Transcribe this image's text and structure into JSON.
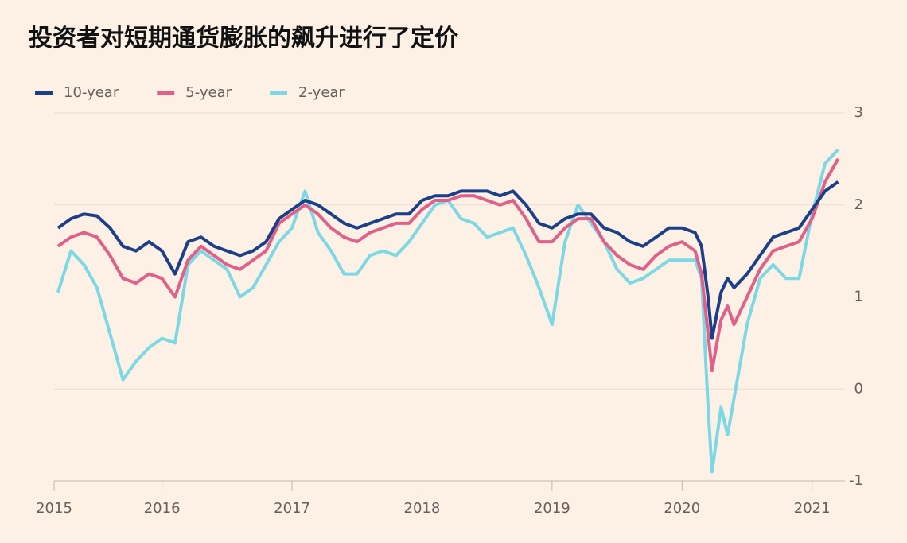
{
  "chart_data": {
    "type": "line",
    "title": "投资者对短期通货膨胀的飙升进行了定价",
    "x": [
      2015.2,
      2015.3,
      2015.4,
      2015.5,
      2015.6,
      2015.7,
      2015.8,
      2015.9,
      2016.0,
      2016.1,
      2016.2,
      2016.3,
      2016.4,
      2016.5,
      2016.6,
      2016.7,
      2016.8,
      2016.9,
      2017.0,
      2017.1,
      2017.2,
      2017.3,
      2017.4,
      2017.5,
      2017.6,
      2017.7,
      2017.8,
      2017.9,
      2018.0,
      2018.1,
      2018.2,
      2018.3,
      2018.4,
      2018.5,
      2018.6,
      2018.7,
      2018.8,
      2018.9,
      2019.0,
      2019.1,
      2019.2,
      2019.3,
      2019.4,
      2019.5,
      2019.6,
      2019.7,
      2019.8,
      2019.9,
      2020.0,
      2020.1,
      2020.15,
      2020.2,
      2020.23,
      2020.3,
      2020.35,
      2020.4,
      2020.5,
      2020.6,
      2020.7,
      2020.8,
      2020.9,
      2021.0,
      2021.1,
      2021.2
    ],
    "series": [
      {
        "name": "10-year",
        "color": "#1c3f8a",
        "values": [
          1.75,
          1.85,
          1.9,
          1.88,
          1.75,
          1.55,
          1.5,
          1.6,
          1.5,
          1.25,
          1.6,
          1.65,
          1.55,
          1.5,
          1.45,
          1.5,
          1.6,
          1.85,
          1.95,
          2.05,
          2.0,
          1.9,
          1.8,
          1.75,
          1.8,
          1.85,
          1.9,
          1.9,
          2.05,
          2.1,
          2.1,
          2.15,
          2.15,
          2.15,
          2.1,
          2.15,
          2.0,
          1.8,
          1.75,
          1.85,
          1.9,
          1.9,
          1.75,
          1.7,
          1.6,
          1.55,
          1.65,
          1.75,
          1.75,
          1.7,
          1.55,
          1.0,
          0.55,
          1.05,
          1.2,
          1.1,
          1.25,
          1.45,
          1.65,
          1.7,
          1.75,
          1.95,
          2.15,
          2.25
        ]
      },
      {
        "name": "5-year",
        "color": "#e0608a",
        "values": [
          1.55,
          1.65,
          1.7,
          1.65,
          1.45,
          1.2,
          1.15,
          1.25,
          1.2,
          1.0,
          1.4,
          1.55,
          1.45,
          1.35,
          1.3,
          1.4,
          1.5,
          1.8,
          1.9,
          2.0,
          1.9,
          1.75,
          1.65,
          1.6,
          1.7,
          1.75,
          1.8,
          1.8,
          1.95,
          2.05,
          2.05,
          2.1,
          2.1,
          2.05,
          2.0,
          2.05,
          1.85,
          1.6,
          1.6,
          1.75,
          1.85,
          1.85,
          1.6,
          1.45,
          1.35,
          1.3,
          1.45,
          1.55,
          1.6,
          1.5,
          1.25,
          0.6,
          0.2,
          0.75,
          0.9,
          0.7,
          1.0,
          1.3,
          1.5,
          1.55,
          1.6,
          1.85,
          2.25,
          2.5
        ]
      },
      {
        "name": "2-year",
        "color": "#7dd8e6",
        "values": [
          1.05,
          1.5,
          1.35,
          1.1,
          0.6,
          0.1,
          0.3,
          0.45,
          0.55,
          0.5,
          1.35,
          1.5,
          1.4,
          1.3,
          1.0,
          1.1,
          1.35,
          1.6,
          1.75,
          2.15,
          1.7,
          1.5,
          1.25,
          1.25,
          1.45,
          1.5,
          1.45,
          1.6,
          1.8,
          2.0,
          2.05,
          1.85,
          1.8,
          1.65,
          1.7,
          1.75,
          1.45,
          1.1,
          0.7,
          1.6,
          2.0,
          1.8,
          1.6,
          1.3,
          1.15,
          1.2,
          1.3,
          1.4,
          1.4,
          1.4,
          1.2,
          -0.2,
          -0.9,
          -0.2,
          -0.5,
          -0.1,
          0.7,
          1.2,
          1.35,
          1.2,
          1.2,
          1.9,
          2.45,
          2.6
        ]
      }
    ],
    "xlim": [
      2015.17,
      2021.21
    ],
    "xticks": [
      {
        "value": 2015.17,
        "label": "2015"
      },
      2016,
      2017,
      2018,
      2019,
      2020,
      2021
    ],
    "ylim": [
      -1,
      3
    ],
    "yticks": [
      -1,
      0,
      1,
      2,
      3
    ],
    "grid": true,
    "legend": "top-left"
  }
}
